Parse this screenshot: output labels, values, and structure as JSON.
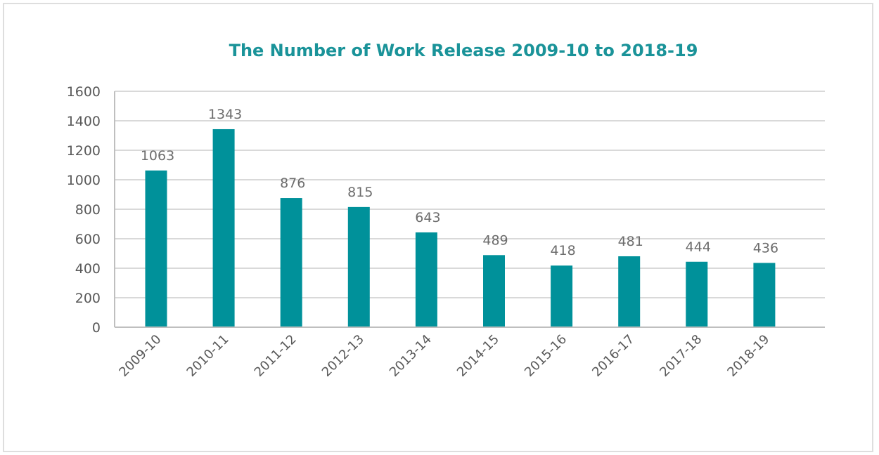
{
  "chart_data": {
    "type": "bar",
    "title": "The Number of Work Release 2009-10 to 2018-19",
    "xlabel": "",
    "ylabel": "",
    "categories": [
      "2009-10",
      "2010-11",
      "2011-12",
      "2012-13",
      "2013-14",
      "2014-15",
      "2015-16",
      "2016-17",
      "2017-18",
      "2018-19"
    ],
    "values": [
      1063,
      1343,
      876,
      815,
      643,
      489,
      418,
      481,
      444,
      436
    ],
    "yticks": [
      "0",
      "200",
      "400",
      "600",
      "800",
      "1000",
      "1200",
      "1400",
      "1600"
    ],
    "ylim": [
      0,
      1600
    ],
    "grid": true,
    "legend": "none"
  },
  "colors": {
    "bar": "#00919a",
    "title": "#1a9399",
    "grid": "#d9d9d9",
    "axis": "#bfbfbf"
  }
}
